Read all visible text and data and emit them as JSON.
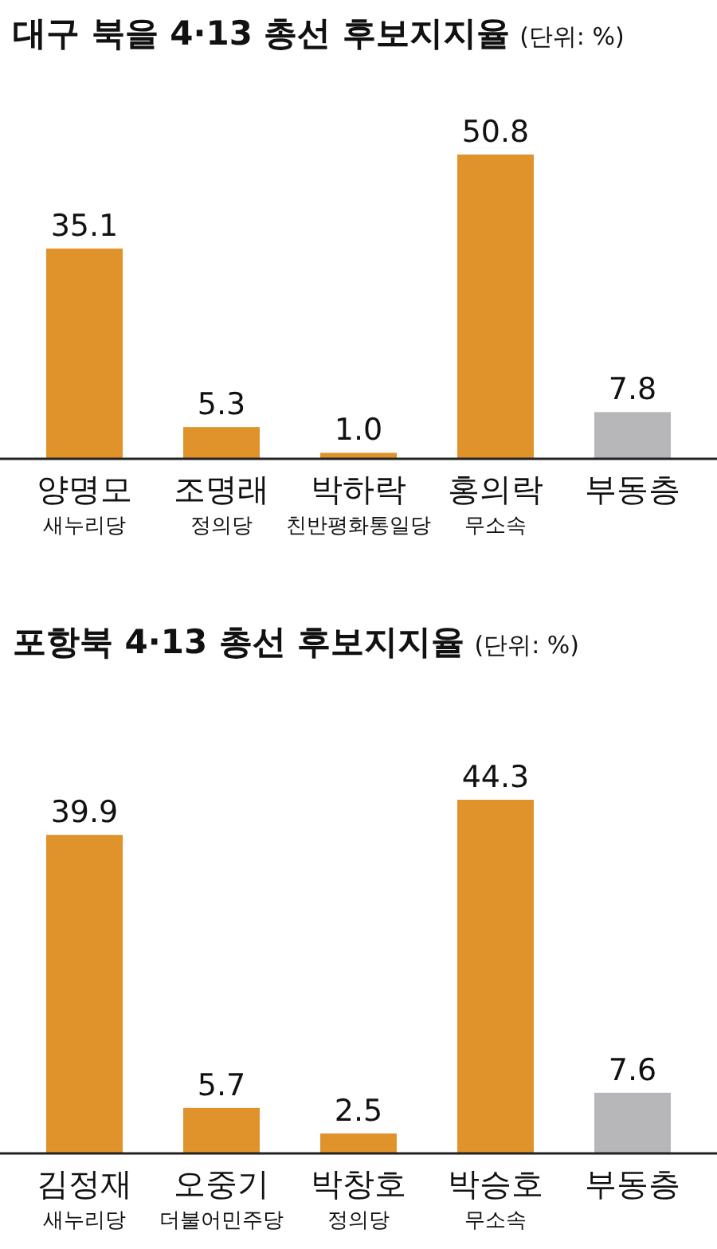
{
  "chart_data": [
    {
      "type": "bar",
      "title": "대구 북을 4·13 총선 후보지지율",
      "subtitle": "(단위: %)",
      "categories": [
        "양명모\n새누리당",
        "조명래\n정의당",
        "박하락\n친반평화통일당",
        "홍의락\n무소속",
        "부동층"
      ],
      "values": [
        35.1,
        5.3,
        1.0,
        50.8,
        7.8
      ],
      "colors": [
        "#e0922b",
        "#e0922b",
        "#e0922b",
        "#e0922b",
        "#b7b7b9"
      ],
      "data_labels": true,
      "value_labels": [
        "35.1",
        "5.3",
        "1.0",
        "50.8",
        "7.8"
      ]
    },
    {
      "type": "bar",
      "title": "포항북 4·13 총선 후보지지율",
      "subtitle": "(단위: %)",
      "categories": [
        "김정재\n새누리당",
        "오중기\n더불어민주당",
        "박창호\n정의당",
        "박승호\n무소속",
        "부동층"
      ],
      "values": [
        39.9,
        5.7,
        2.5,
        44.3,
        7.6
      ],
      "colors": [
        "#e0922b",
        "#e0922b",
        "#e0922b",
        "#e0922b",
        "#b7b7b9"
      ],
      "data_labels": true,
      "value_labels": [
        "39.9",
        "5.7",
        "2.5",
        "44.3",
        "7.6"
      ]
    }
  ]
}
